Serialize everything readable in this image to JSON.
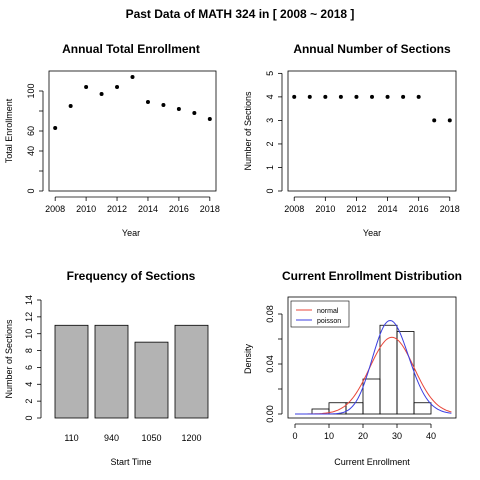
{
  "title": "Past Data of MATH 324 in [ 2008 ~ 2018 ]",
  "colors": {
    "bar": "#b3b3b3",
    "normal": "#e8473b",
    "poisson": "#3b3fe0",
    "point": "#000000"
  },
  "chart_data": [
    {
      "type": "scatter",
      "title": "Annual Total Enrollment",
      "xlabel": "Year",
      "ylabel": "Total Enrollment",
      "x": [
        2008,
        2009,
        2010,
        2011,
        2012,
        2013,
        2014,
        2015,
        2016,
        2017,
        2018
      ],
      "y": [
        63,
        85,
        104,
        97,
        104,
        114,
        89,
        86,
        82,
        78,
        72
      ],
      "xlim": [
        2007.6,
        2018.4
      ],
      "ylim": [
        0,
        120
      ],
      "xticks": [
        2008,
        2010,
        2012,
        2014,
        2016,
        2018
      ],
      "yticks": [
        0,
        20,
        40,
        60,
        80,
        100
      ],
      "ytick_labels": [
        "0",
        "",
        "40",
        "60",
        "",
        "100"
      ]
    },
    {
      "type": "scatter",
      "title": "Annual Number of Sections",
      "xlabel": "Year",
      "ylabel": "Number of Sections",
      "x": [
        2008,
        2009,
        2010,
        2011,
        2012,
        2013,
        2014,
        2015,
        2016,
        2017,
        2018
      ],
      "y": [
        4,
        4,
        4,
        4,
        4,
        4,
        4,
        4,
        4,
        3,
        3
      ],
      "xlim": [
        2007.6,
        2018.4
      ],
      "ylim": [
        0,
        5.1
      ],
      "xticks": [
        2008,
        2010,
        2012,
        2014,
        2016,
        2018
      ],
      "yticks": [
        0,
        1,
        2,
        3,
        4,
        5
      ]
    },
    {
      "type": "bar",
      "title": "Frequency of Sections",
      "xlabel": "Start Time",
      "ylabel": "Number of Sections",
      "categories": [
        "110",
        "940",
        "1050",
        "1200"
      ],
      "values": [
        11,
        11,
        9,
        11
      ],
      "ylim": [
        0,
        14
      ],
      "yticks": [
        0,
        2,
        4,
        6,
        8,
        10,
        12,
        14
      ]
    },
    {
      "type": "histogram",
      "title": "Current Enrollment Distribution",
      "xlabel": "Current Enrollment",
      "ylabel": "Density",
      "bins": [
        [
          5,
          10
        ],
        [
          10,
          15
        ],
        [
          15,
          20
        ],
        [
          20,
          25
        ],
        [
          25,
          30
        ],
        [
          30,
          35
        ],
        [
          35,
          40
        ]
      ],
      "density": [
        0.004,
        0.009,
        0.009,
        0.028,
        0.071,
        0.066,
        0.009
      ],
      "xlim": [
        0,
        46
      ],
      "ylim": [
        0,
        0.09
      ],
      "xticks": [
        0,
        10,
        20,
        30,
        40
      ],
      "yticks": [
        0,
        0.02,
        0.04,
        0.06,
        0.08
      ],
      "ytick_labels": [
        "0.00",
        "",
        "0.04",
        "",
        "0.08"
      ],
      "curves": [
        {
          "name": "normal",
          "mean": 28.5,
          "sd": 6.5
        },
        {
          "name": "poisson",
          "lambda": 28.5
        }
      ],
      "legend": [
        "normal",
        "poisson"
      ],
      "legend_position": "top-left"
    }
  ]
}
